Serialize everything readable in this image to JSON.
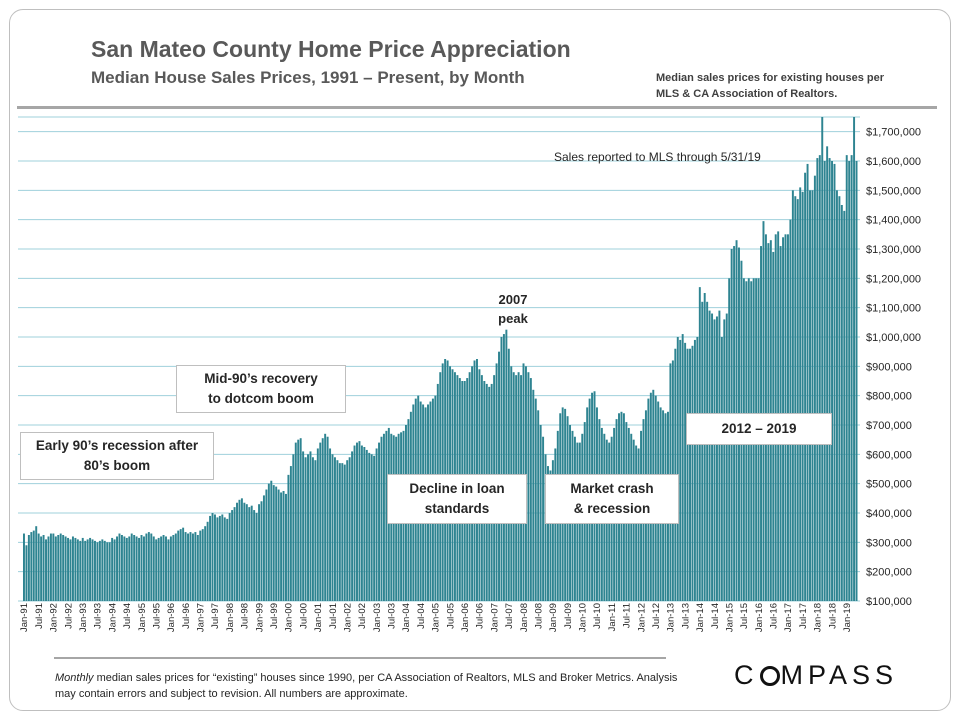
{
  "header": {
    "title": "San Mateo County Home Price Appreciation",
    "subtitle": "Median House Sales Prices, 1991 – Present, by Month",
    "source_note": "Median sales prices for existing houses per MLS & CA Association of Realtors."
  },
  "chart_data": {
    "type": "bar",
    "title": "San Mateo County Home Price Appreciation",
    "subtitle": "Median House Sales Prices, 1991 – Present, by Month",
    "bar_color": "#2e8491",
    "grid_color": "#9fd0db",
    "grid": true,
    "ylim": [
      100000,
      1750000
    ],
    "y_ticks": [
      100000,
      200000,
      300000,
      400000,
      500000,
      600000,
      700000,
      800000,
      900000,
      1000000,
      1100000,
      1200000,
      1300000,
      1400000,
      1500000,
      1600000,
      1700000
    ],
    "y_tick_labels": [
      "$100,000",
      "$200,000",
      "$300,000",
      "$400,000",
      "$500,000",
      "$600,000",
      "$700,000",
      "$800,000",
      "$900,000",
      "$1,000,000",
      "$1,100,000",
      "$1,200,000",
      "$1,300,000",
      "$1,400,000",
      "$1,500,000",
      "$1,600,000",
      "$1,700,000"
    ],
    "x_tick_labels": [
      "Jan-91",
      "Jul-91",
      "Jan-92",
      "Jul-92",
      "Jan-93",
      "Jul-93",
      "Jan-94",
      "Jul-94",
      "Jan-95",
      "Jul-95",
      "Jan-96",
      "Jul-96",
      "Jan-97",
      "Jul-97",
      "Jan-98",
      "Jul-98",
      "Jan-99",
      "Jul-99",
      "Jan-00",
      "Jul-00",
      "Jan-01",
      "Jul-01",
      "Jan-02",
      "Jul-02",
      "Jan-03",
      "Jul-03",
      "Jan-04",
      "Jul-04",
      "Jan-05",
      "Jul-05",
      "Jan-06",
      "Jul-06",
      "Jan-07",
      "Jul-07",
      "Jan-08",
      "Jul-08",
      "Jan-09",
      "Jul-09",
      "Jan-10",
      "Jul-10",
      "Jan-11",
      "Jul-11",
      "Jan-12",
      "Jul-12",
      "Jan-13",
      "Jul-13",
      "Jan-14",
      "Jul-14",
      "Jan-15",
      "Jul-15",
      "Jan-16",
      "Jul-16",
      "Jan-17",
      "Jul-17",
      "Jan-18",
      "Jul-18",
      "Jan-19"
    ],
    "x_start": "1991-01",
    "x_end": "2019-05",
    "values": [
      330000,
      290000,
      325000,
      335000,
      340000,
      355000,
      330000,
      320000,
      325000,
      310000,
      320000,
      330000,
      330000,
      320000,
      325000,
      330000,
      325000,
      320000,
      315000,
      310000,
      320000,
      315000,
      310000,
      305000,
      315000,
      305000,
      310000,
      315000,
      310000,
      305000,
      300000,
      305000,
      310000,
      305000,
      300000,
      300000,
      315000,
      310000,
      320000,
      330000,
      325000,
      320000,
      315000,
      320000,
      330000,
      325000,
      320000,
      315000,
      325000,
      320000,
      330000,
      335000,
      330000,
      320000,
      310000,
      315000,
      320000,
      325000,
      320000,
      310000,
      320000,
      325000,
      330000,
      340000,
      345000,
      350000,
      335000,
      330000,
      335000,
      330000,
      335000,
      325000,
      340000,
      345000,
      355000,
      370000,
      390000,
      400000,
      395000,
      385000,
      390000,
      395000,
      385000,
      380000,
      400000,
      410000,
      420000,
      435000,
      445000,
      450000,
      435000,
      430000,
      420000,
      425000,
      410000,
      400000,
      430000,
      440000,
      460000,
      480000,
      500000,
      510000,
      495000,
      490000,
      480000,
      470000,
      475000,
      465000,
      530000,
      560000,
      600000,
      640000,
      650000,
      655000,
      610000,
      590000,
      600000,
      610000,
      590000,
      580000,
      620000,
      640000,
      655000,
      670000,
      660000,
      620000,
      600000,
      590000,
      580000,
      570000,
      570000,
      565000,
      580000,
      590000,
      610000,
      630000,
      640000,
      645000,
      630000,
      625000,
      615000,
      605000,
      600000,
      595000,
      620000,
      640000,
      660000,
      670000,
      680000,
      690000,
      670000,
      665000,
      660000,
      670000,
      675000,
      680000,
      700000,
      720000,
      745000,
      770000,
      790000,
      800000,
      780000,
      770000,
      760000,
      770000,
      780000,
      790000,
      800000,
      840000,
      880000,
      910000,
      925000,
      920000,
      900000,
      890000,
      880000,
      870000,
      860000,
      850000,
      850000,
      860000,
      880000,
      900000,
      920000,
      925000,
      890000,
      870000,
      850000,
      840000,
      830000,
      840000,
      870000,
      910000,
      950000,
      1000000,
      1010000,
      1025000,
      960000,
      900000,
      880000,
      870000,
      880000,
      870000,
      910000,
      900000,
      880000,
      860000,
      820000,
      790000,
      750000,
      700000,
      660000,
      600000,
      560000,
      545000,
      580000,
      620000,
      680000,
      740000,
      760000,
      755000,
      730000,
      700000,
      680000,
      660000,
      640000,
      640000,
      670000,
      710000,
      760000,
      790000,
      810000,
      815000,
      760000,
      720000,
      690000,
      670000,
      650000,
      640000,
      660000,
      690000,
      720000,
      740000,
      745000,
      740000,
      710000,
      690000,
      670000,
      650000,
      630000,
      620000,
      680000,
      720000,
      750000,
      790000,
      810000,
      820000,
      800000,
      780000,
      760000,
      750000,
      740000,
      745000,
      910000,
      920000,
      960000,
      1000000,
      990000,
      1010000,
      980000,
      960000,
      960000,
      970000,
      990000,
      1000000,
      1170000,
      1120000,
      1150000,
      1120000,
      1090000,
      1080000,
      1060000,
      1070000,
      1090000,
      1000000,
      1060000,
      1080000,
      1200000,
      1300000,
      1310000,
      1330000,
      1305000,
      1260000,
      1200000,
      1190000,
      1200000,
      1190000,
      1200000,
      1200000,
      1200000,
      1310000,
      1395000,
      1350000,
      1320000,
      1330000,
      1290000,
      1350000,
      1360000,
      1310000,
      1340000,
      1350000,
      1350000,
      1400000,
      1500000,
      1480000,
      1470000,
      1510000,
      1495000,
      1560000,
      1590000,
      1500000,
      1500000,
      1550000,
      1610000,
      1620000,
      1750000,
      1600000,
      1650000,
      1610000,
      1600000,
      1590000,
      1500000,
      1480000,
      1450000,
      1430000,
      1620000,
      1600000,
      1620000,
      1750000,
      1600000
    ],
    "annotations": [
      {
        "id": "mls",
        "text": "Sales reported to MLS through 5/31/19"
      },
      {
        "id": "early90s",
        "text": "Early 90’s recession after 80’s boom"
      },
      {
        "id": "mid90s",
        "text": "Mid-90’s recovery to dotcom boom"
      },
      {
        "id": "peak",
        "text": "2007 peak"
      },
      {
        "id": "decline",
        "text": "Decline in loan standards"
      },
      {
        "id": "crash",
        "text": "Market crash & recession"
      },
      {
        "id": "recent",
        "text": "2012 – 2019"
      }
    ]
  },
  "labels": {
    "mls_note": "Sales reported to MLS through 5/31/19",
    "early90s_line1": "Early 90’s recession after",
    "early90s_line2": "80’s boom",
    "mid90s_line1": "Mid-90’s recovery",
    "mid90s_line2": "to dotcom boom",
    "peak_line1": "2007",
    "peak_line2": "peak",
    "decline_line1": "Decline in loan",
    "decline_line2": "standards",
    "crash_line1": "Market crash",
    "crash_line2": "& recession",
    "recent": "2012 – 2019"
  },
  "footer": {
    "footnote_em": "Monthly",
    "footnote_rest": " median sales prices for “existing” houses since 1990, per CA Association of Realtors, MLS and Broker Metrics.  Analysis may contain errors and subject to revision. All numbers are approximate.",
    "logo_pre": "C",
    "logo_post": "MPASS"
  }
}
